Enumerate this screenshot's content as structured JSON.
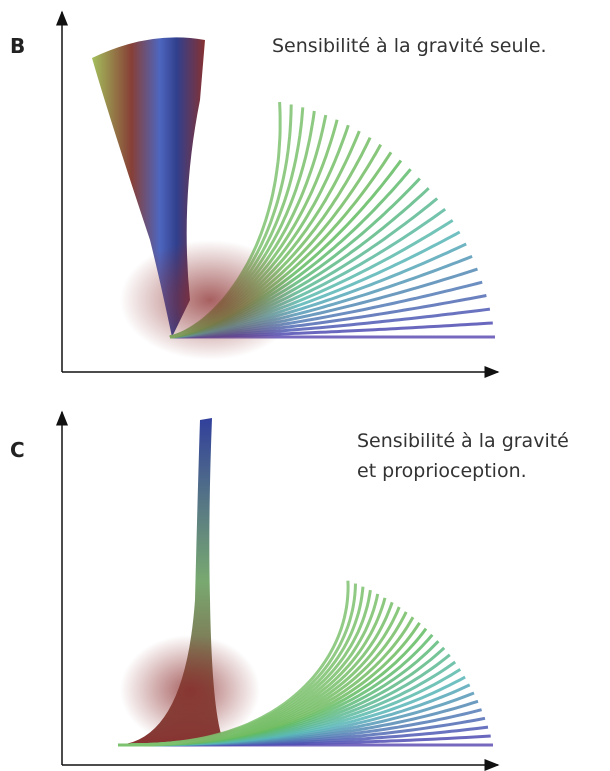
{
  "panels": [
    {
      "label": "B",
      "caption": [
        "Sensibilité à la gravité seule."
      ]
    },
    {
      "label": "C",
      "caption": [
        "Sensibilité à la gravité",
        "et proprioception."
      ]
    }
  ]
}
